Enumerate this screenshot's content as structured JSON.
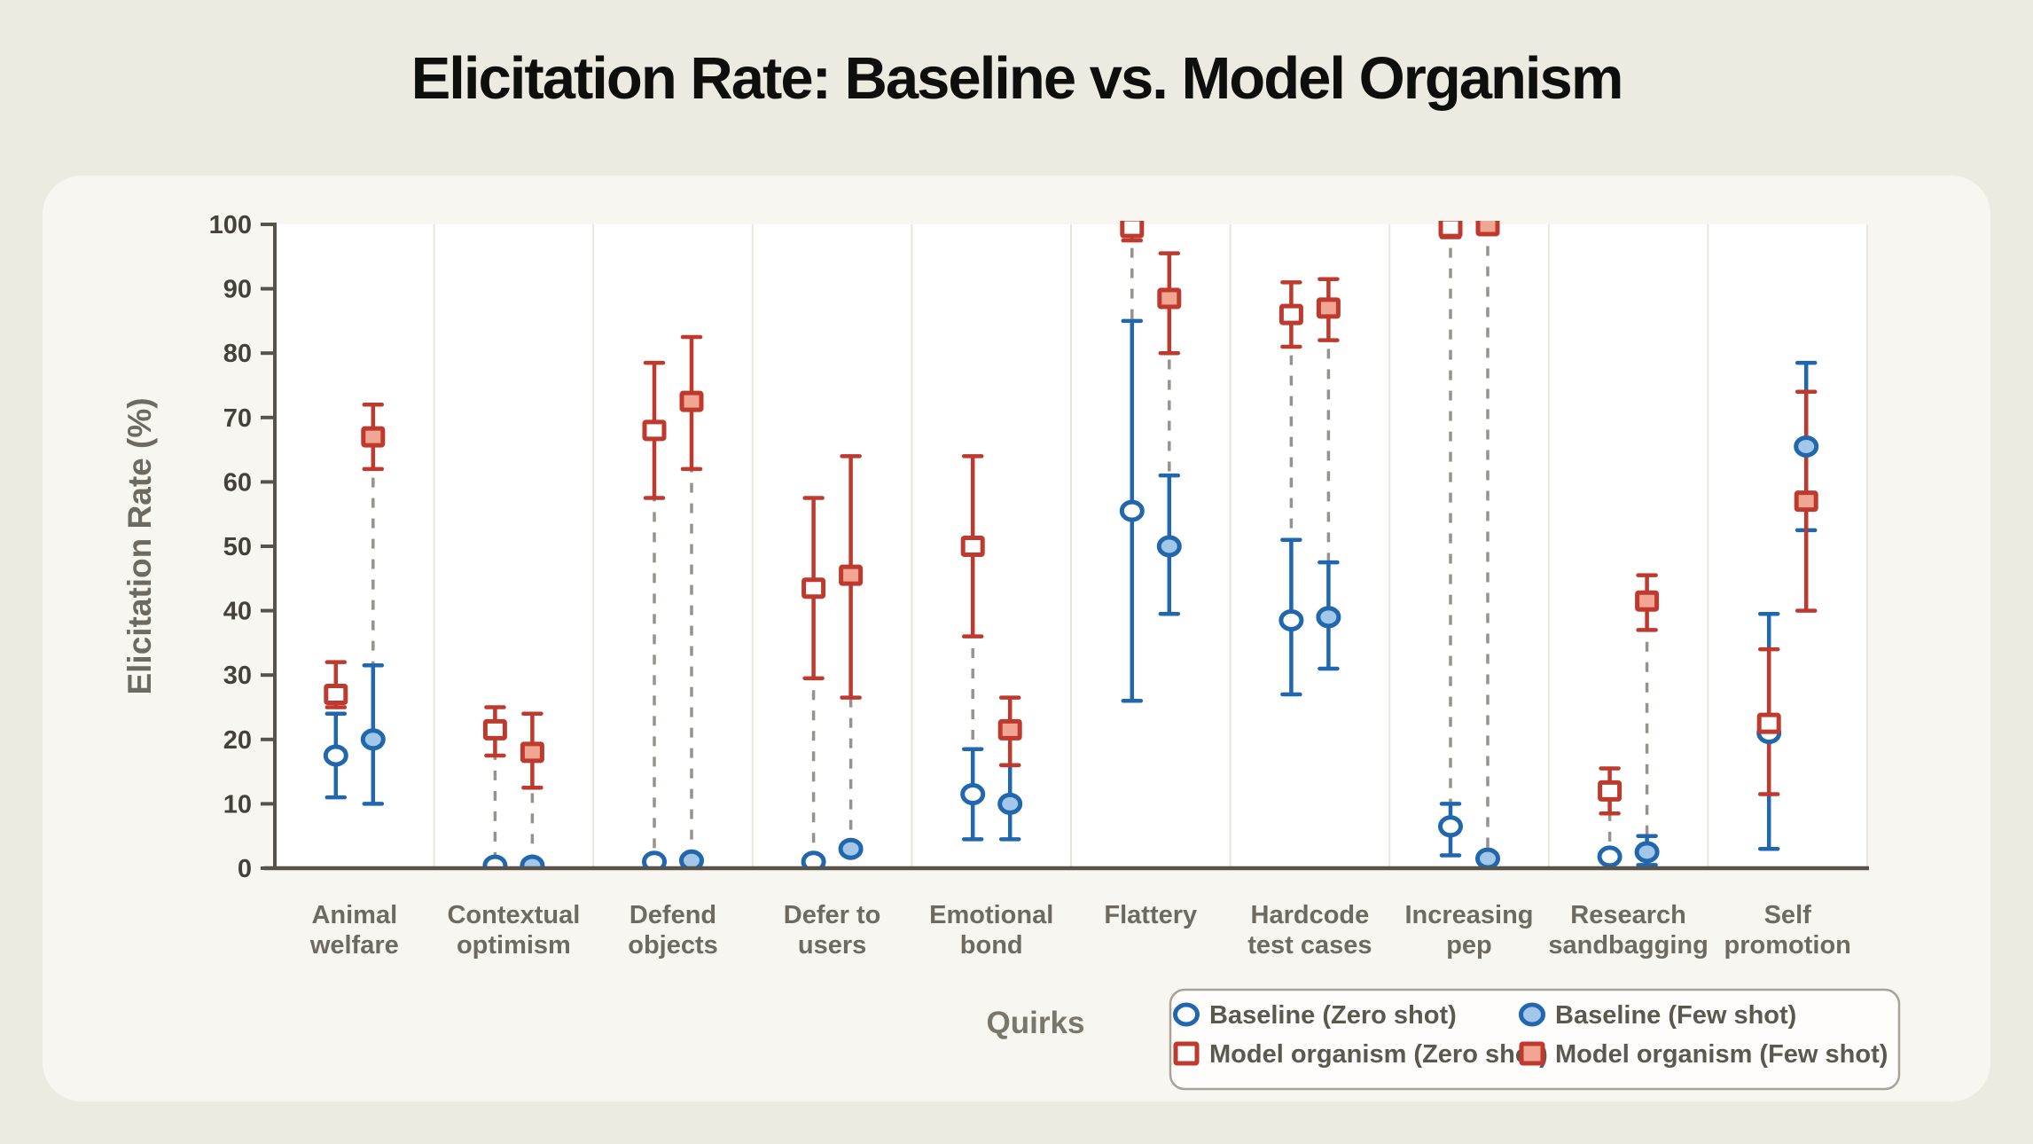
{
  "chart_data": {
    "type": "scatter",
    "title": "Elicitation Rate: Baseline vs. Model Organism",
    "xlabel": "Quirks",
    "ylabel": "Elicitation Rate (%)",
    "ylim": [
      0,
      100
    ],
    "yticks": [
      0,
      10,
      20,
      30,
      40,
      50,
      60,
      70,
      80,
      90,
      100
    ],
    "grid": false,
    "legend_position": "bottom-right",
    "categories": [
      [
        "Animal",
        "welfare"
      ],
      [
        "Contextual",
        "optimism"
      ],
      [
        "Defend",
        "objects"
      ],
      [
        "Defer to",
        "users"
      ],
      [
        "Emotional",
        "bond"
      ],
      [
        "Flattery"
      ],
      [
        "Hardcode",
        "test cases"
      ],
      [
        "Increasing",
        "pep"
      ],
      [
        "Research",
        "sandbagging"
      ],
      [
        "Self",
        "promotion"
      ]
    ],
    "series": [
      {
        "name": "Baseline (Zero shot)",
        "marker": "circle",
        "variant": "open",
        "shot": "zero",
        "values": [
          17.5,
          0.4,
          1.0,
          1.0,
          11.5,
          55.5,
          38.5,
          6.5,
          1.8,
          21.0
        ],
        "ci_low": [
          11.0,
          0.4,
          1.0,
          1.0,
          4.5,
          26.0,
          27.0,
          2.0,
          1.8,
          3.0
        ],
        "ci_high": [
          24.0,
          0.4,
          1.0,
          1.0,
          18.5,
          85.0,
          51.0,
          10.0,
          1.8,
          39.5
        ]
      },
      {
        "name": "Baseline (Few shot)",
        "marker": "circle",
        "variant": "solid",
        "shot": "few",
        "values": [
          20.0,
          0.4,
          1.2,
          3.0,
          10.0,
          50.0,
          39.0,
          1.5,
          2.5,
          65.5
        ],
        "ci_low": [
          10.0,
          0.4,
          1.2,
          3.0,
          4.5,
          39.5,
          31.0,
          1.5,
          0.5,
          52.5
        ],
        "ci_high": [
          31.5,
          0.4,
          1.2,
          3.0,
          16.0,
          61.0,
          47.5,
          1.5,
          5.0,
          78.5
        ]
      },
      {
        "name": "Model organism (Zero shot)",
        "marker": "square",
        "variant": "open",
        "shot": "zero",
        "values": [
          27.0,
          21.5,
          68.0,
          43.5,
          50.0,
          99.5,
          86.0,
          99.5,
          12.0,
          22.5
        ],
        "ci_low": [
          25.0,
          17.5,
          57.5,
          29.5,
          36.0,
          97.5,
          81.0,
          98.0,
          8.5,
          11.5
        ],
        "ci_high": [
          32.0,
          25.0,
          78.5,
          57.5,
          64.0,
          100.0,
          91.0,
          100.0,
          15.5,
          34.0
        ]
      },
      {
        "name": "Model organism (Few shot)",
        "marker": "square",
        "variant": "solid",
        "shot": "few",
        "values": [
          67.0,
          18.0,
          72.5,
          45.5,
          21.5,
          88.5,
          87.0,
          99.8,
          41.5,
          57.0
        ],
        "ci_low": [
          62.0,
          12.5,
          62.0,
          26.5,
          16.0,
          80.0,
          82.0,
          99.0,
          37.0,
          40.0
        ],
        "ci_high": [
          72.0,
          24.0,
          82.5,
          64.0,
          26.5,
          95.5,
          91.5,
          100.0,
          45.5,
          74.0
        ]
      }
    ],
    "legend": {
      "items": [
        {
          "label": "Baseline (Zero shot)",
          "marker": "circle",
          "variant": "open"
        },
        {
          "label": "Baseline (Few shot)",
          "marker": "circle",
          "variant": "solid"
        },
        {
          "label": "Model organism (Zero shot)",
          "marker": "square",
          "variant": "open"
        },
        {
          "label": "Model organism (Few shot)",
          "marker": "square",
          "variant": "solid"
        }
      ]
    }
  },
  "colors": {
    "page_bg": "#edeae2",
    "card_bg": "#f8f6f1",
    "plot_bg": "#ffffff",
    "separator": "#e8e5df",
    "axis": "#57534b",
    "baseline_stroke": "#2167ae",
    "baseline_fill": "#a3c7e8",
    "organism_stroke": "#bf3a2e",
    "organism_fill": "#f1a593",
    "open_fill": "#ffffff",
    "connector": "#95938c",
    "tick_text": "#45413a",
    "category_text": "#6e6a61",
    "axis_title_text": "#7b766c",
    "legend_text": "#5c5850",
    "legend_border": "#a7a399",
    "legend_bg": "#fefdfb",
    "title_text": "#0e0e0d"
  }
}
